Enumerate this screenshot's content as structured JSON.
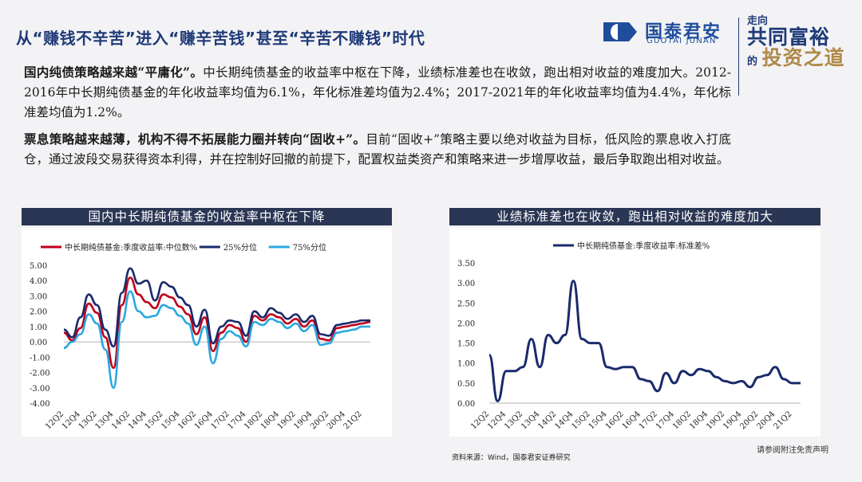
{
  "header": {
    "title": "从“赚钱不辛苦”进入“赚辛苦钱”甚至“辛苦不赚钱”时代",
    "logo_cn": "国泰君安",
    "logo_en": "GUOTAI JUNAN",
    "slogan_1": "走向",
    "slogan_2": "共同富裕",
    "slogan_3": "的",
    "slogan_4": "投资之道"
  },
  "paragraphs": {
    "p1_bold": "国内纯债策略越来越“平庸化”。",
    "p1_rest": "中长期纯债基金的收益率中枢在下降，业绩标准差也在收敛，跑出相对收益的难度加大。2012-2016年中长期纯债基金的年化收益率均值为6.1%，年化标准差均值为2.4%；2017-2021年的年化收益率均值为4.4%，年化标准差均值为1.2%。",
    "p2_bold": "票息策略越来越薄，机构不得不拓展能力圈并转向“固收+”。",
    "p2_rest": "目前“固收+”策略主要以绝对收益为目标，低风险的票息收入打底仓，通过波段交易获得资本利得，并在控制好回撤的前提下，配置权益类资产和策略来进一步增厚收益，最后争取跑出相对收益。"
  },
  "colors": {
    "median": "#c0001a",
    "p25": "#1a2a6c",
    "p75": "#2aa8e0",
    "std": "#1a2a6c",
    "panel_head": "#2b3654"
  },
  "chart_data": [
    {
      "type": "line",
      "title": "国内中长期纯债基金的收益率中枢在下降",
      "legend_position": "top",
      "ylim": [
        -4,
        5
      ],
      "yticks": [
        "5.00",
        "4.00",
        "3.00",
        "2.00",
        "1.00",
        "0.00",
        "-1.00",
        "-2.00",
        "-3.00",
        "-4.00"
      ],
      "categories": [
        "12Q2",
        "12Q3",
        "12Q4",
        "13Q1",
        "13Q2",
        "13Q3",
        "13Q4",
        "14Q1",
        "14Q2",
        "14Q3",
        "14Q4",
        "15Q1",
        "15Q2",
        "15Q3",
        "15Q4",
        "16Q1",
        "16Q2",
        "16Q3",
        "16Q4",
        "17Q1",
        "17Q2",
        "17Q3",
        "17Q4",
        "18Q1",
        "18Q2",
        "18Q3",
        "18Q4",
        "19Q1",
        "19Q2",
        "19Q3",
        "19Q4",
        "20Q1",
        "20Q2",
        "20Q3",
        "20Q4",
        "21Q1",
        "21Q2",
        "21Q3"
      ],
      "tick_labels": [
        "12Q2",
        "12Q4",
        "13Q2",
        "13Q4",
        "14Q2",
        "14Q4",
        "15Q2",
        "15Q4",
        "16Q2",
        "16Q4",
        "17Q2",
        "17Q4",
        "18Q2",
        "18Q4",
        "19Q2",
        "19Q4",
        "20Q2",
        "20Q4",
        "21Q2"
      ],
      "series": [
        {
          "name": "中长期纯债基金:季度收益率:中位数%",
          "color_key": "median",
          "values": [
            0.6,
            0.1,
            0.9,
            2.5,
            1.9,
            0.3,
            -1.7,
            2.4,
            4.2,
            3.1,
            2.6,
            2.2,
            3.1,
            2.9,
            2.3,
            1.8,
            0.5,
            1.6,
            -0.6,
            0.6,
            1.1,
            0.9,
            0.0,
            1.7,
            1.4,
            1.8,
            1.6,
            1.2,
            1.5,
            1.0,
            1.4,
            0.2,
            0.1,
            0.9,
            1.0,
            1.1,
            1.2,
            1.3
          ]
        },
        {
          "name": "25%分位",
          "color_key": "p25",
          "values": [
            0.8,
            0.3,
            1.6,
            3.1,
            2.4,
            0.8,
            -0.3,
            3.2,
            4.8,
            3.8,
            4.0,
            2.7,
            3.9,
            3.6,
            2.9,
            2.4,
            1.0,
            2.1,
            -0.1,
            1.0,
            1.4,
            1.3,
            0.4,
            2.0,
            1.6,
            2.2,
            1.9,
            1.5,
            1.8,
            1.3,
            1.7,
            0.5,
            0.4,
            1.1,
            1.2,
            1.3,
            1.4,
            1.4
          ]
        },
        {
          "name": "75%分位",
          "color_key": "p75",
          "values": [
            -0.4,
            0.0,
            0.5,
            1.8,
            1.2,
            -0.5,
            -3.0,
            1.3,
            3.3,
            2.0,
            1.6,
            1.7,
            2.4,
            2.2,
            1.7,
            1.2,
            -0.2,
            1.0,
            -1.4,
            0.2,
            0.7,
            0.4,
            -0.3,
            1.3,
            1.1,
            1.5,
            1.3,
            0.9,
            1.2,
            0.7,
            1.1,
            -0.2,
            -0.1,
            0.6,
            0.7,
            0.8,
            1.0,
            1.0
          ]
        }
      ]
    },
    {
      "type": "line",
      "title": "业绩标准差也在收敛，跑出相对收益的难度加大",
      "legend_position": "top",
      "ylim": [
        0,
        3.5
      ],
      "yticks": [
        "3.50",
        "3.00",
        "2.50",
        "2.00",
        "1.50",
        "1.00",
        "0.50",
        "0.00"
      ],
      "categories": [
        "12Q2",
        "12Q3",
        "12Q4",
        "13Q1",
        "13Q2",
        "13Q3",
        "13Q4",
        "14Q1",
        "14Q2",
        "14Q3",
        "14Q4",
        "15Q1",
        "15Q2",
        "15Q3",
        "15Q4",
        "16Q1",
        "16Q2",
        "16Q3",
        "16Q4",
        "17Q1",
        "17Q2",
        "17Q3",
        "17Q4",
        "18Q1",
        "18Q2",
        "18Q3",
        "18Q4",
        "19Q1",
        "19Q2",
        "19Q3",
        "19Q4",
        "20Q1",
        "20Q2",
        "20Q3",
        "20Q4",
        "21Q1",
        "21Q2",
        "21Q3"
      ],
      "tick_labels": [
        "12Q2",
        "12Q4",
        "13Q2",
        "13Q4",
        "14Q2",
        "14Q4",
        "15Q2",
        "15Q4",
        "16Q2",
        "16Q4",
        "17Q2",
        "17Q4",
        "18Q2",
        "18Q4",
        "19Q2",
        "19Q4",
        "20Q2",
        "20Q4",
        "21Q2"
      ],
      "series": [
        {
          "name": "中长期纯债基金:季度收益率:标准差%",
          "color_key": "std",
          "values": [
            1.2,
            0.05,
            0.8,
            0.8,
            0.9,
            1.6,
            0.9,
            1.7,
            1.5,
            1.7,
            3.05,
            1.6,
            1.5,
            1.5,
            0.9,
            0.85,
            0.9,
            0.9,
            0.6,
            0.55,
            0.3,
            0.75,
            0.5,
            0.8,
            0.7,
            0.85,
            0.8,
            0.65,
            0.55,
            0.5,
            0.55,
            0.4,
            0.65,
            0.7,
            0.9,
            0.6,
            0.5,
            0.5
          ]
        }
      ]
    }
  ],
  "footer": {
    "source": "资料来源：Wind，国泰君安证券研究",
    "disclaimer": "请参阅附注免责声明"
  }
}
